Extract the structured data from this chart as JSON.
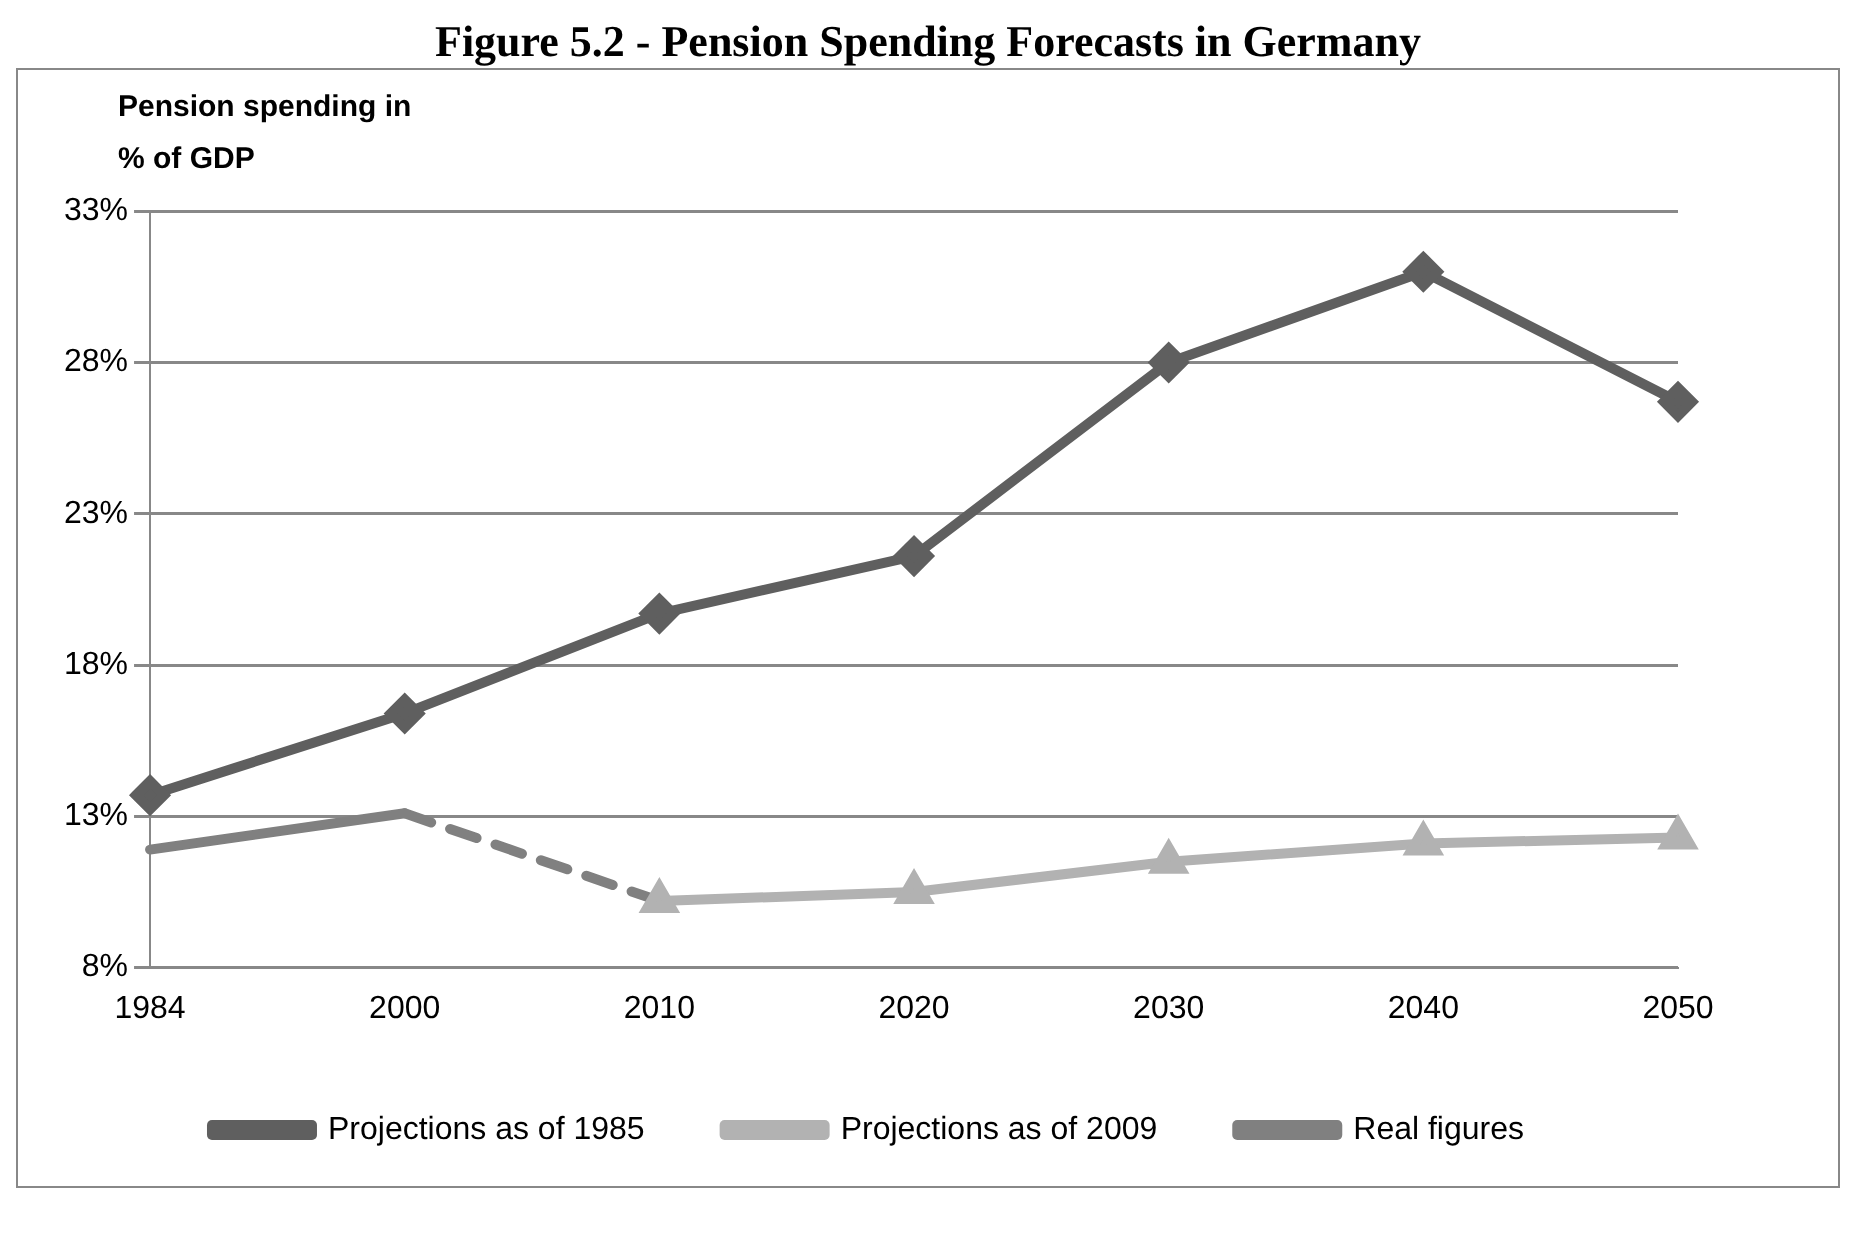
{
  "chart_data": {
    "type": "line",
    "title": "Figure 5.2 - Pension Spending Forecasts in Germany",
    "ylabel": "Pension spending in % of GDP",
    "categories": [
      "1984",
      "2000",
      "2010",
      "2020",
      "2030",
      "2040",
      "2050"
    ],
    "series": [
      {
        "name": "Projections as of 1985",
        "color": "#5f5f5f",
        "marker": "diamond",
        "values": [
          13.7,
          16.4,
          19.7,
          21.6,
          28.0,
          31.0,
          26.7
        ]
      },
      {
        "name": "Projections as of 2009",
        "color": "#b2b2b2",
        "marker": "triangle",
        "values": [
          null,
          null,
          10.2,
          10.5,
          11.5,
          12.1,
          12.3
        ]
      },
      {
        "name": "Real figures",
        "color": "#808080",
        "marker": "none",
        "values": [
          11.9,
          13.1,
          null,
          null,
          null,
          null,
          null
        ]
      },
      {
        "color": "#808080",
        "marker": "none",
        "line_style": "dashed",
        "values": [
          null,
          13.1,
          10.2,
          null,
          null,
          null,
          null
        ]
      }
    ],
    "ylim": [
      8,
      33
    ],
    "yticks": [
      {
        "value": 8,
        "label": "8%"
      },
      {
        "value": 13,
        "label": "13%"
      },
      {
        "value": 18,
        "label": "18%"
      },
      {
        "value": 23,
        "label": "23%"
      },
      {
        "value": 28,
        "label": "28%"
      },
      {
        "value": 33,
        "label": "33%"
      }
    ],
    "grid": "y",
    "legend": "bottom"
  }
}
